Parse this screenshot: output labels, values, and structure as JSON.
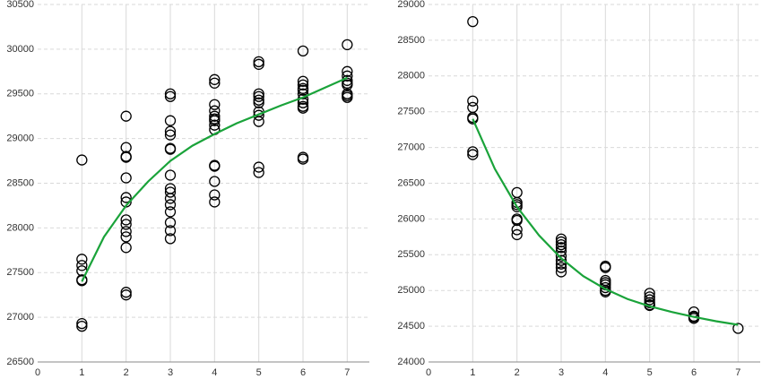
{
  "chart_data": [
    {
      "type": "scatter",
      "xlim": [
        0,
        7.5
      ],
      "ylim": [
        26500,
        30500
      ],
      "xticks": [
        0,
        1,
        2,
        3,
        4,
        5,
        6,
        7
      ],
      "yticks": [
        26500,
        27000,
        27500,
        28000,
        28500,
        29000,
        29500,
        30000,
        30500
      ],
      "grid": true,
      "series": [
        {
          "type": "scatter",
          "color": "#000000",
          "x": [
            1,
            1,
            1,
            1,
            1,
            1,
            1,
            1,
            2,
            2,
            2,
            2,
            2,
            2,
            2,
            2,
            2,
            2,
            2,
            2,
            2,
            2,
            3,
            3,
            3,
            3,
            3,
            3,
            3,
            3,
            3,
            3,
            3,
            3,
            3,
            3,
            3,
            3,
            4,
            4,
            4,
            4,
            4,
            4,
            4,
            4,
            4,
            4,
            4,
            4,
            4,
            4,
            5,
            5,
            5,
            5,
            5,
            5,
            5,
            5,
            5,
            5,
            5,
            6,
            6,
            6,
            6,
            6,
            6,
            6,
            6,
            6,
            6,
            6,
            6,
            7,
            7,
            7,
            7,
            7,
            7,
            7,
            7,
            7
          ],
          "values": [
            28760,
            27650,
            27580,
            27520,
            27420,
            27410,
            26930,
            26900,
            29250,
            28900,
            28800,
            28790,
            28560,
            28340,
            28290,
            28090,
            28040,
            27960,
            27900,
            27780,
            27280,
            27250,
            29500,
            29470,
            29200,
            29080,
            29040,
            28890,
            28880,
            28590,
            28440,
            28400,
            28330,
            28260,
            28180,
            28060,
            27970,
            27880,
            29660,
            29620,
            29380,
            29310,
            29250,
            29220,
            29200,
            29150,
            29100,
            28700,
            28690,
            28520,
            28370,
            28290,
            29860,
            29830,
            29500,
            29470,
            29430,
            29400,
            29300,
            29260,
            29190,
            28680,
            28620,
            29980,
            29640,
            29600,
            29560,
            29540,
            29500,
            29440,
            29400,
            29360,
            29340,
            28790,
            28770,
            30050,
            29750,
            29700,
            29650,
            29620,
            29600,
            29500,
            29480,
            29460
          ]
        },
        {
          "type": "line",
          "color": "#1aa33a",
          "x": [
            1,
            1.5,
            2,
            2.5,
            3,
            3.5,
            4,
            4.5,
            5,
            5.5,
            6,
            6.5,
            7
          ],
          "values": [
            27400,
            27900,
            28250,
            28520,
            28750,
            28920,
            29050,
            29170,
            29270,
            29370,
            29460,
            29570,
            29680
          ]
        }
      ]
    },
    {
      "type": "scatter",
      "xlim": [
        0,
        7.5
      ],
      "ylim": [
        24000,
        29000
      ],
      "xticks": [
        0,
        1,
        2,
        3,
        4,
        5,
        6,
        7
      ],
      "yticks": [
        24000,
        24500,
        25000,
        25500,
        26000,
        26500,
        27000,
        27500,
        28000,
        28500,
        29000
      ],
      "grid": true,
      "series": [
        {
          "type": "scatter",
          "color": "#000000",
          "x": [
            1,
            1,
            1,
            1,
            1,
            1,
            1,
            2,
            2,
            2,
            2,
            2,
            2,
            2,
            2,
            3,
            3,
            3,
            3,
            3,
            3,
            3,
            3,
            3,
            3,
            4,
            4,
            4,
            4,
            4,
            4,
            4,
            4,
            5,
            5,
            5,
            5,
            5,
            5,
            6,
            6,
            6,
            6,
            7
          ],
          "values": [
            28760,
            27650,
            27560,
            27420,
            27400,
            26940,
            26900,
            26370,
            26230,
            26200,
            26170,
            26000,
            25980,
            25850,
            25780,
            25720,
            25680,
            25640,
            25600,
            25550,
            25480,
            25420,
            25370,
            25320,
            25260,
            25340,
            25320,
            25140,
            25110,
            25080,
            25040,
            25000,
            24980,
            24960,
            24910,
            24870,
            24830,
            24800,
            24790,
            24700,
            24640,
            24630,
            24610,
            24470
          ]
        },
        {
          "type": "line",
          "color": "#1aa33a",
          "x": [
            1,
            1.5,
            2,
            2.5,
            3,
            3.5,
            4,
            4.5,
            5,
            5.5,
            6,
            6.5,
            7
          ],
          "values": [
            27400,
            26700,
            26170,
            25770,
            25450,
            25200,
            25020,
            24880,
            24780,
            24700,
            24630,
            24570,
            24520
          ]
        }
      ]
    }
  ]
}
